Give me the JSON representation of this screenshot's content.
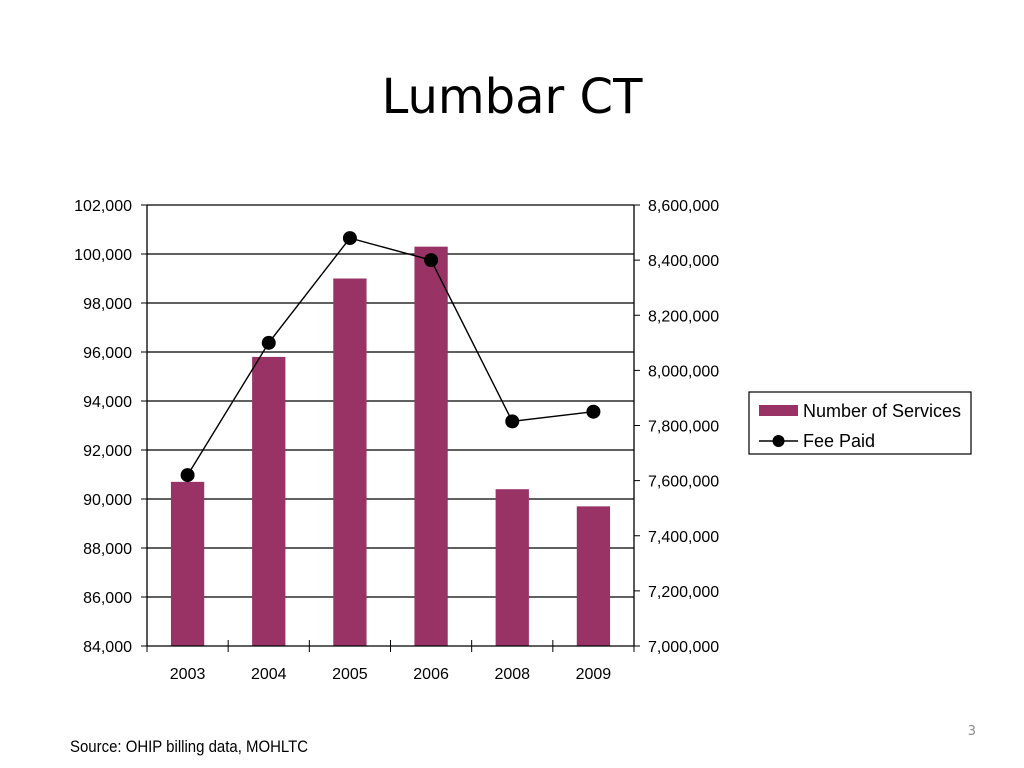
{
  "slide": {
    "title": "Lumbar CT",
    "source": "Source: OHIP billing data, MOHLTC",
    "page_number": "3"
  },
  "chart_data": {
    "type": "bar",
    "categories": [
      "2003",
      "2004",
      "2005",
      "2006",
      "2008",
      "2009"
    ],
    "series": [
      {
        "name": "Number of Services",
        "type": "bar",
        "axis": "left",
        "color": "#993366",
        "values": [
          90700,
          95800,
          99000,
          100300,
          90400,
          89700
        ]
      },
      {
        "name": "Fee Paid",
        "type": "line",
        "axis": "right",
        "color": "#000000",
        "values": [
          7620000,
          8100000,
          8480000,
          8400000,
          7815000,
          7850000
        ]
      }
    ],
    "left_axis": {
      "min": 84000,
      "max": 102000,
      "ticks": [
        "84,000",
        "86,000",
        "88,000",
        "90,000",
        "92,000",
        "94,000",
        "96,000",
        "98,000",
        "100,000",
        "102,000"
      ]
    },
    "right_axis": {
      "min": 7000000,
      "max": 8600000,
      "ticks": [
        "7,000,000",
        "7,200,000",
        "7,400,000",
        "7,600,000",
        "7,800,000",
        "8,000,000",
        "8,200,000",
        "8,400,000",
        "8,600,000"
      ]
    },
    "grid": true,
    "legend": {
      "position": "right",
      "entries": [
        "Number of Services",
        "Fee Paid"
      ]
    }
  }
}
